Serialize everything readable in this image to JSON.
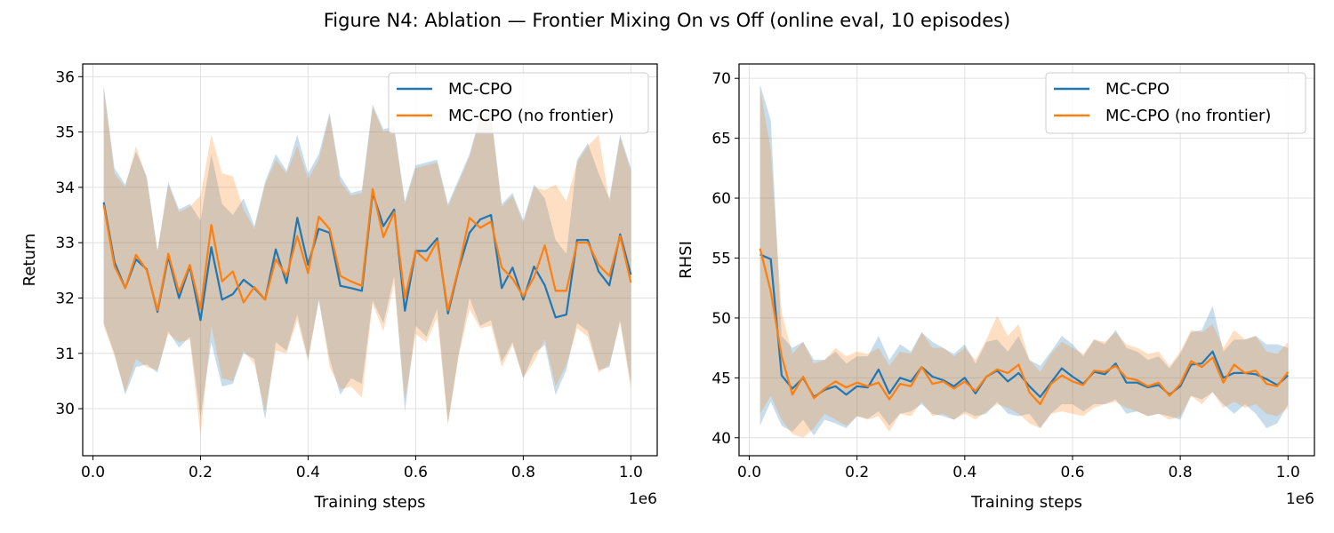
{
  "figure_title": "Figure N4: Ablation — Frontier Mixing On vs Off (online eval, 10 episodes)",
  "colors": {
    "series_a": "#1f77b4",
    "series_b": "#ff7f0e",
    "grid": "#e0e0e0"
  },
  "chart_data": [
    {
      "type": "line",
      "title": "",
      "xlabel": "Training steps",
      "ylabel": "Return",
      "x_scale_label": "1e6",
      "xlim": [
        -0.019,
        1.049
      ],
      "ylim": [
        29.15,
        36.23
      ],
      "xticks": [
        0.0,
        0.2,
        0.4,
        0.6,
        0.8,
        1.0
      ],
      "xtick_labels": [
        "0.0",
        "0.2",
        "0.4",
        "0.6",
        "0.8",
        "1.0"
      ],
      "yticks": [
        30,
        31,
        32,
        33,
        34,
        35,
        36
      ],
      "ytick_labels": [
        "30",
        "31",
        "32",
        "33",
        "34",
        "35",
        "36"
      ],
      "grid": true,
      "legend_position": "top-right",
      "x": [
        0.02,
        0.04,
        0.06,
        0.08,
        0.1,
        0.12,
        0.14,
        0.16,
        0.18,
        0.2,
        0.22,
        0.24,
        0.26,
        0.28,
        0.3,
        0.32,
        0.34,
        0.36,
        0.38,
        0.4,
        0.42,
        0.44,
        0.46,
        0.48,
        0.5,
        0.52,
        0.54,
        0.56,
        0.58,
        0.6,
        0.62,
        0.64,
        0.66,
        0.68,
        0.7,
        0.72,
        0.74,
        0.76,
        0.78,
        0.8,
        0.82,
        0.84,
        0.86,
        0.88,
        0.9,
        0.92,
        0.94,
        0.96,
        0.98,
        1.0
      ],
      "series": [
        {
          "name": "MC-CPO",
          "color": "#1f77b4",
          "mean": [
            33.73,
            32.65,
            32.18,
            32.7,
            32.52,
            31.75,
            32.75,
            32.0,
            32.58,
            31.6,
            32.92,
            31.97,
            32.07,
            32.33,
            32.18,
            31.97,
            32.88,
            32.27,
            33.45,
            32.6,
            33.25,
            33.18,
            32.22,
            32.18,
            32.13,
            33.9,
            33.3,
            33.6,
            31.77,
            32.85,
            32.85,
            33.08,
            31.72,
            32.53,
            33.18,
            33.42,
            33.5,
            32.18,
            32.55,
            31.97,
            32.57,
            32.23,
            31.65,
            31.7,
            33.05,
            33.05,
            32.48,
            32.23,
            33.15,
            32.42
          ],
          "lower": [
            31.55,
            31.0,
            30.25,
            30.75,
            30.8,
            30.65,
            31.4,
            31.1,
            31.3,
            29.85,
            31.2,
            30.4,
            30.45,
            31.0,
            30.9,
            29.8,
            31.2,
            31.05,
            31.7,
            30.9,
            31.95,
            30.9,
            30.25,
            30.55,
            30.45,
            31.95,
            31.55,
            32.4,
            29.95,
            31.5,
            31.3,
            31.8,
            29.75,
            31.0,
            32.0,
            31.5,
            31.6,
            30.85,
            31.2,
            30.55,
            31.0,
            31.15,
            30.25,
            30.7,
            31.55,
            31.4,
            30.7,
            30.75,
            31.6,
            30.45
          ],
          "upper": [
            35.85,
            34.35,
            34.05,
            34.65,
            34.2,
            32.85,
            34.1,
            33.6,
            33.7,
            33.4,
            34.6,
            33.7,
            33.5,
            33.8,
            33.3,
            34.1,
            34.6,
            34.3,
            34.95,
            34.25,
            34.6,
            35.35,
            34.2,
            33.9,
            33.95,
            35.5,
            35.05,
            35.1,
            33.75,
            34.4,
            34.45,
            34.5,
            33.7,
            34.15,
            34.6,
            35.3,
            35.35,
            33.7,
            33.9,
            33.4,
            34.05,
            33.8,
            33.05,
            32.8,
            34.5,
            34.8,
            34.25,
            33.8,
            34.95,
            34.35
          ]
        },
        {
          "name": "MC-CPO (no frontier)",
          "color": "#ff7f0e",
          "mean": [
            33.68,
            32.58,
            32.18,
            32.78,
            32.5,
            31.78,
            32.8,
            32.1,
            32.6,
            31.8,
            33.32,
            32.3,
            32.48,
            31.92,
            32.2,
            31.97,
            32.7,
            32.4,
            33.12,
            32.45,
            33.47,
            33.25,
            32.4,
            32.3,
            32.22,
            33.97,
            33.1,
            33.55,
            32.0,
            32.85,
            32.67,
            33.03,
            31.78,
            32.55,
            33.45,
            33.27,
            33.38,
            32.55,
            32.35,
            32.03,
            32.38,
            32.95,
            32.13,
            32.13,
            33.0,
            33.0,
            32.6,
            32.4,
            33.12,
            32.28
          ],
          "lower": [
            31.5,
            30.95,
            30.3,
            30.9,
            30.75,
            30.7,
            31.35,
            31.2,
            31.25,
            29.5,
            31.5,
            30.55,
            30.5,
            31.05,
            30.8,
            29.95,
            31.05,
            31.0,
            31.6,
            30.85,
            32.0,
            30.75,
            30.35,
            30.4,
            30.2,
            31.9,
            31.4,
            32.25,
            30.15,
            31.35,
            31.2,
            31.65,
            29.7,
            30.95,
            31.8,
            31.45,
            31.5,
            30.75,
            31.15,
            30.55,
            30.85,
            31.25,
            30.4,
            30.8,
            31.45,
            31.3,
            30.65,
            30.8,
            31.55,
            30.35
          ],
          "upper": [
            35.8,
            34.25,
            34.0,
            34.75,
            34.15,
            32.85,
            34.05,
            33.55,
            33.65,
            33.85,
            34.95,
            34.25,
            34.2,
            33.6,
            33.25,
            34.05,
            34.5,
            34.25,
            34.75,
            34.15,
            34.5,
            35.3,
            34.1,
            33.85,
            33.9,
            35.45,
            35.0,
            35.05,
            33.7,
            34.35,
            34.4,
            34.45,
            33.65,
            34.1,
            34.55,
            35.25,
            35.3,
            33.65,
            33.85,
            33.35,
            34.0,
            33.95,
            34.05,
            33.75,
            34.45,
            34.75,
            34.95,
            33.75,
            34.9,
            34.3
          ]
        }
      ]
    },
    {
      "type": "line",
      "title": "",
      "xlabel": "Training steps",
      "ylabel": "RHSI",
      "x_scale_label": "1e6",
      "xlim": [
        -0.019,
        1.049
      ],
      "ylim": [
        38.5,
        71.2
      ],
      "xticks": [
        0.0,
        0.2,
        0.4,
        0.6,
        0.8,
        1.0
      ],
      "xtick_labels": [
        "0.0",
        "0.2",
        "0.4",
        "0.6",
        "0.8",
        "1.0"
      ],
      "yticks": [
        40,
        45,
        50,
        55,
        60,
        65,
        70
      ],
      "ytick_labels": [
        "40",
        "45",
        "50",
        "55",
        "60",
        "65",
        "70"
      ],
      "grid": true,
      "legend_position": "top-right",
      "x": [
        0.02,
        0.04,
        0.06,
        0.08,
        0.1,
        0.12,
        0.14,
        0.16,
        0.18,
        0.2,
        0.22,
        0.24,
        0.26,
        0.28,
        0.3,
        0.32,
        0.34,
        0.36,
        0.38,
        0.4,
        0.42,
        0.44,
        0.46,
        0.48,
        0.5,
        0.52,
        0.54,
        0.56,
        0.58,
        0.6,
        0.62,
        0.64,
        0.66,
        0.68,
        0.7,
        0.72,
        0.74,
        0.76,
        0.78,
        0.8,
        0.82,
        0.84,
        0.86,
        0.88,
        0.9,
        0.92,
        0.94,
        0.96,
        0.98,
        1.0
      ],
      "series": [
        {
          "name": "MC-CPO",
          "color": "#1f77b4",
          "mean": [
            55.3,
            54.9,
            45.2,
            44.1,
            45.0,
            43.4,
            44.0,
            44.3,
            43.6,
            44.3,
            44.2,
            45.7,
            43.7,
            45.0,
            44.7,
            45.9,
            45.1,
            44.8,
            44.3,
            45.0,
            43.7,
            45.1,
            45.6,
            44.7,
            45.4,
            44.3,
            43.4,
            44.6,
            45.8,
            45.1,
            44.5,
            45.5,
            45.3,
            46.2,
            44.6,
            44.6,
            44.2,
            44.4,
            43.6,
            44.3,
            46.1,
            46.2,
            47.2,
            45.0,
            45.4,
            45.4,
            45.3,
            44.9,
            44.4,
            45.2
          ],
          "lower": [
            41.0,
            43.0,
            41.0,
            40.5,
            41.5,
            40.2,
            41.5,
            41.2,
            40.8,
            41.8,
            41.6,
            42.2,
            41.0,
            42.0,
            42.2,
            42.8,
            42.0,
            41.8,
            41.5,
            42.2,
            41.8,
            42.0,
            43.0,
            42.0,
            41.8,
            42.0,
            40.8,
            42.0,
            42.8,
            42.8,
            42.2,
            42.8,
            42.8,
            43.2,
            42.0,
            42.2,
            41.8,
            42.0,
            41.8,
            41.5,
            43.5,
            43.2,
            43.8,
            42.8,
            42.0,
            42.8,
            42.0,
            40.8,
            41.2,
            42.8
          ],
          "upper": [
            69.5,
            66.5,
            48.5,
            47.5,
            48.0,
            46.5,
            46.5,
            47.2,
            46.2,
            46.8,
            46.8,
            48.5,
            46.5,
            47.8,
            47.2,
            48.8,
            48.0,
            47.5,
            47.0,
            47.8,
            46.2,
            48.0,
            48.2,
            47.2,
            48.5,
            46.5,
            46.0,
            47.2,
            48.5,
            47.8,
            46.8,
            48.2,
            47.8,
            49.0,
            47.5,
            47.2,
            46.5,
            46.8,
            45.8,
            47.0,
            48.8,
            49.0,
            51.0,
            47.2,
            48.2,
            48.2,
            48.5,
            47.8,
            47.8,
            47.5
          ]
        },
        {
          "name": "MC-CPO (no frontier)",
          "color": "#ff7f0e",
          "mean": [
            55.8,
            52.2,
            46.8,
            43.6,
            45.1,
            43.3,
            44.1,
            44.7,
            44.2,
            44.6,
            44.3,
            44.6,
            43.2,
            44.5,
            44.3,
            45.9,
            44.5,
            44.7,
            44.1,
            44.7,
            43.9,
            45.1,
            45.7,
            45.4,
            46.1,
            43.8,
            42.8,
            44.5,
            45.2,
            44.7,
            44.4,
            45.6,
            45.5,
            46.0,
            45.0,
            44.8,
            44.3,
            44.6,
            43.5,
            44.5,
            46.4,
            45.9,
            46.7,
            44.6,
            46.1,
            45.4,
            45.6,
            44.5,
            44.3,
            45.5
          ],
          "lower": [
            42.0,
            43.5,
            41.5,
            40.3,
            40.0,
            40.8,
            42.0,
            41.5,
            41.0,
            41.8,
            41.5,
            41.8,
            40.5,
            42.0,
            41.8,
            43.0,
            41.8,
            42.0,
            41.5,
            42.0,
            41.5,
            42.2,
            42.8,
            42.5,
            42.0,
            41.2,
            40.8,
            42.0,
            42.2,
            42.0,
            41.8,
            42.5,
            42.8,
            43.0,
            42.5,
            42.2,
            41.8,
            42.0,
            41.5,
            41.8,
            43.5,
            42.8,
            43.8,
            42.5,
            43.0,
            42.5,
            42.8,
            42.0,
            41.8,
            42.5
          ],
          "upper": [
            69.2,
            64.0,
            50.5,
            47.0,
            48.0,
            46.2,
            46.5,
            47.5,
            46.8,
            47.2,
            47.0,
            47.5,
            46.0,
            47.2,
            47.0,
            48.8,
            47.5,
            47.5,
            46.8,
            47.5,
            46.5,
            48.2,
            50.2,
            48.5,
            49.5,
            46.5,
            45.5,
            47.0,
            48.0,
            47.5,
            47.0,
            48.2,
            48.0,
            48.8,
            47.8,
            47.5,
            47.0,
            47.2,
            46.0,
            47.2,
            49.0,
            48.8,
            49.5,
            47.5,
            49.0,
            48.2,
            48.5,
            47.2,
            47.0,
            48.0
          ]
        }
      ]
    }
  ]
}
